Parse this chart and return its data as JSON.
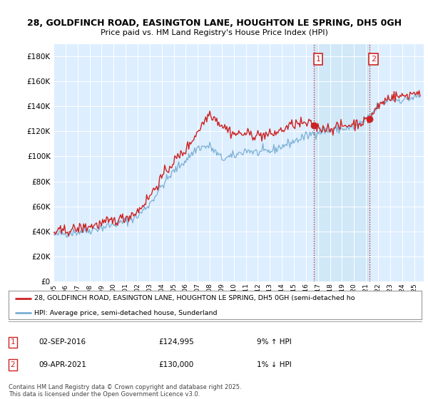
{
  "title1": "28, GOLDFINCH ROAD, EASINGTON LANE, HOUGHTON LE SPRING, DH5 0GH",
  "title2": "Price paid vs. HM Land Registry's House Price Index (HPI)",
  "legend1": "28, GOLDFINCH ROAD, EASINGTON LANE, HOUGHTON LE SPRING, DH5 0GH (semi-detached ho",
  "legend2": "HPI: Average price, semi-detached house, Sunderland",
  "sale1_date": "02-SEP-2016",
  "sale1_price": "£124,995",
  "sale1_hpi": "9% ↑ HPI",
  "sale2_date": "09-APR-2021",
  "sale2_price": "£130,000",
  "sale2_hpi": "1% ↓ HPI",
  "footer": "Contains HM Land Registry data © Crown copyright and database right 2025.\nThis data is licensed under the Open Government Licence v3.0.",
  "vline1_x": 2016.67,
  "vline2_x": 2021.27,
  "sale1_y": 124995,
  "sale2_y": 130000,
  "ylim": [
    0,
    190000
  ],
  "yticks": [
    0,
    20000,
    40000,
    60000,
    80000,
    100000,
    120000,
    140000,
    160000,
    180000
  ],
  "xlim_start": 1995.0,
  "xlim_end": 2025.8,
  "xtick_years": [
    1995,
    1996,
    1997,
    1998,
    1999,
    2000,
    2001,
    2002,
    2003,
    2004,
    2005,
    2006,
    2007,
    2008,
    2009,
    2010,
    2011,
    2012,
    2013,
    2014,
    2015,
    2016,
    2017,
    2018,
    2019,
    2020,
    2021,
    2022,
    2023,
    2024,
    2025
  ],
  "hpi_color": "#7bafd4",
  "price_color": "#cc2222",
  "vline_color": "#cc2222",
  "shade_color": "#d0e8f8",
  "plot_bg": "#ddeeff",
  "grid_color": "#ffffff"
}
